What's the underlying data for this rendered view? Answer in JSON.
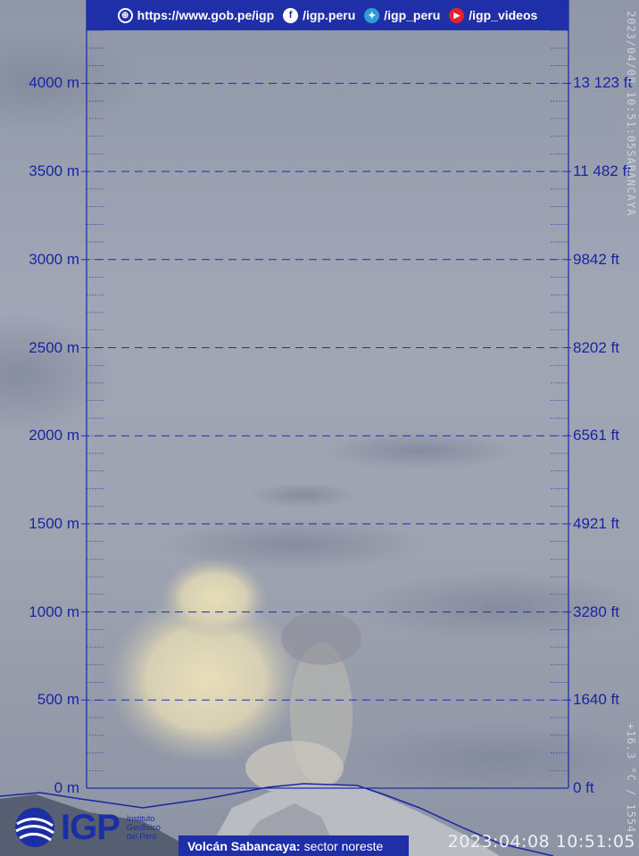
{
  "header": {
    "items": [
      {
        "icon": "globe-icon",
        "label": "https://www.gob.pe/igp"
      },
      {
        "icon": "facebook-icon",
        "label": "/igp.peru"
      },
      {
        "icon": "twitter-icon",
        "label": "/igp_peru"
      },
      {
        "icon": "youtube-icon",
        "label": "/igp_videos"
      }
    ]
  },
  "scale": {
    "meters": [
      "4000 m",
      "3500 m",
      "3000 m",
      "2500 m",
      "2000 m",
      "1500 m",
      "1000 m",
      "500 m",
      "0 m"
    ],
    "feet": [
      "13 123 ft",
      "11 482 ft",
      "9842 ft",
      "8202 ft",
      "6561 ft",
      "4921 ft",
      "3280 ft",
      "1640 ft",
      "0 ft"
    ]
  },
  "overlay": {
    "side_top": "2023/04/08 10:51:05SABANCAYA",
    "side_bottom": "+16.3 °C / 1554"
  },
  "logo": {
    "name": "IGP",
    "institute": [
      "Instituto",
      "Geofísico",
      "del Perú"
    ]
  },
  "caption": {
    "volcano": "Volcán Sabancaya:",
    "sector": "sector noreste"
  },
  "timestamp": "2023:04:08 10:51:05",
  "colors": {
    "overlay_blue": "#1f2fa8",
    "sky": "#9aa2b2"
  }
}
